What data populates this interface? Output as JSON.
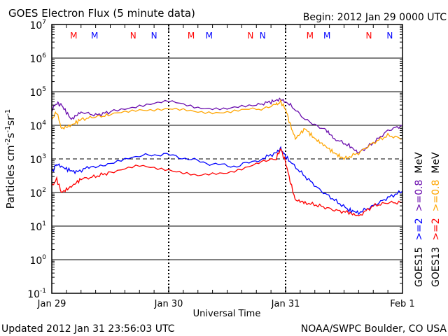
{
  "chart_data": {
    "type": "line",
    "title": "GOES Electron Flux (5 minute data)",
    "begin_label": "Begin: 2012 Jan 29 0000 UTC",
    "xlabel": "Universal Time",
    "ylabel": "Particles cm⁻²s⁻¹sr⁻¹",
    "ylabel_parts": {
      "main": "Particles cm",
      "e1": "-2",
      "s": "s",
      "e2": "-1",
      "sr": "sr",
      "e3": "-1"
    },
    "x_unit": "hours since 2012 Jan 29 0000 UTC",
    "xlim": [
      0,
      72
    ],
    "ylim_log10": [
      -1,
      7
    ],
    "yscale": "log",
    "y_ticks": [
      {
        "base": "10",
        "exp": "7"
      },
      {
        "base": "10",
        "exp": "6"
      },
      {
        "base": "10",
        "exp": "5"
      },
      {
        "base": "10",
        "exp": "4"
      },
      {
        "base": "10",
        "exp": "3"
      },
      {
        "base": "10",
        "exp": "2"
      },
      {
        "base": "10",
        "exp": "1"
      },
      {
        "base": "10",
        "exp": "0"
      },
      {
        "base": "10",
        "exp": "-1"
      }
    ],
    "x_ticks": [
      {
        "label": "Jan 29",
        "hour": 0
      },
      {
        "label": "Jan 30",
        "hour": 24
      },
      {
        "label": "Jan 31",
        "hour": 48
      },
      {
        "label": "Feb 1",
        "hour": 72
      }
    ],
    "threshold_line": 1000,
    "grid": true,
    "markers": [
      {
        "label": "M",
        "hour": 4.5,
        "color": "#ff0000"
      },
      {
        "label": "M",
        "hour": 8.8,
        "color": "#0000ff"
      },
      {
        "label": "N",
        "hour": 16.7,
        "color": "#ff0000"
      },
      {
        "label": "N",
        "hour": 21.0,
        "color": "#0000ff"
      },
      {
        "label": "M",
        "hour": 28.6,
        "color": "#ff0000"
      },
      {
        "label": "M",
        "hour": 32.3,
        "color": "#0000ff"
      },
      {
        "label": "N",
        "hour": 40.8,
        "color": "#ff0000"
      },
      {
        "label": "N",
        "hour": 43.3,
        "color": "#0000ff"
      },
      {
        "label": "M",
        "hour": 53.0,
        "color": "#ff0000"
      },
      {
        "label": "M",
        "hour": 56.5,
        "color": "#0000ff"
      },
      {
        "label": "N",
        "hour": 65.1,
        "color": "#ff0000"
      },
      {
        "label": "N",
        "hour": 69.4,
        "color": "#0000ff"
      }
    ],
    "series": [
      {
        "name": "GOES15 >=0.8 MeV",
        "color": "#6a0dad",
        "x": [
          0,
          1,
          2,
          4,
          6,
          9,
          12,
          18,
          24,
          30,
          36,
          42,
          45,
          47,
          49,
          52,
          56,
          58,
          61,
          63,
          66,
          69,
          72
        ],
        "values": [
          30000,
          45000,
          40000,
          15000,
          25000,
          20000,
          25000,
          40000,
          50000,
          35000,
          30000,
          40000,
          50000,
          60000,
          40000,
          15000,
          8000,
          4000,
          2500,
          1500,
          3000,
          7000,
          10000
        ]
      },
      {
        "name": "GOES13 >=0.8 MeV",
        "color": "#ffa500",
        "x": [
          0,
          1,
          2,
          4,
          6,
          9,
          12,
          18,
          24,
          30,
          36,
          42,
          46,
          47,
          48,
          49,
          50,
          52,
          54,
          56,
          58,
          60,
          63,
          66,
          69,
          72
        ],
        "values": [
          15000,
          25000,
          8000,
          10000,
          15000,
          18000,
          20000,
          30000,
          30000,
          25000,
          25000,
          30000,
          40000,
          50000,
          30000,
          10000,
          4000,
          8000,
          4000,
          2500,
          1500,
          1000,
          1500,
          3000,
          5000,
          4000
        ]
      },
      {
        "name": "GOES15 >=2 MeV",
        "color": "#0000ff",
        "x": [
          0,
          1,
          3,
          5,
          8,
          12,
          18,
          23,
          28,
          33,
          38,
          43,
          46,
          47,
          48,
          49,
          52,
          55,
          58,
          61,
          63,
          66,
          69,
          72
        ],
        "values": [
          400,
          700,
          500,
          400,
          600,
          700,
          1200,
          1400,
          1000,
          700,
          600,
          1000,
          1500,
          2000,
          1200,
          800,
          300,
          120,
          60,
          30,
          25,
          40,
          70,
          110
        ]
      },
      {
        "name": "GOES13 >=2 MeV",
        "color": "#ff0000",
        "x": [
          0,
          1,
          2,
          4,
          6,
          9,
          12,
          18,
          24,
          30,
          36,
          42,
          46,
          47,
          48,
          49,
          50,
          52,
          55,
          58,
          61,
          63,
          66,
          69,
          72
        ],
        "values": [
          150,
          250,
          100,
          150,
          250,
          300,
          400,
          600,
          500,
          300,
          400,
          700,
          1000,
          2000,
          800,
          200,
          60,
          50,
          40,
          30,
          25,
          20,
          40,
          50,
          50
        ]
      }
    ],
    "legend": [
      {
        "sat": "GOES15",
        "ch1": ">=2",
        "ch1_color": "#0000ff",
        "ch2": ">=0.8",
        "ch2_color": "#6a0dad",
        "unit": "MeV"
      },
      {
        "sat": "GOES13",
        "ch1": ">=2",
        "ch1_color": "#ff0000",
        "ch2": ">=0.8",
        "ch2_color": "#ffa500",
        "unit": "MeV"
      }
    ],
    "legend_placement": "right-vertical"
  },
  "footer": {
    "updated": "Updated 2012 Jan 31 23:56:03 UTC",
    "credit": "NOAA/SWPC Boulder, CO USA"
  }
}
